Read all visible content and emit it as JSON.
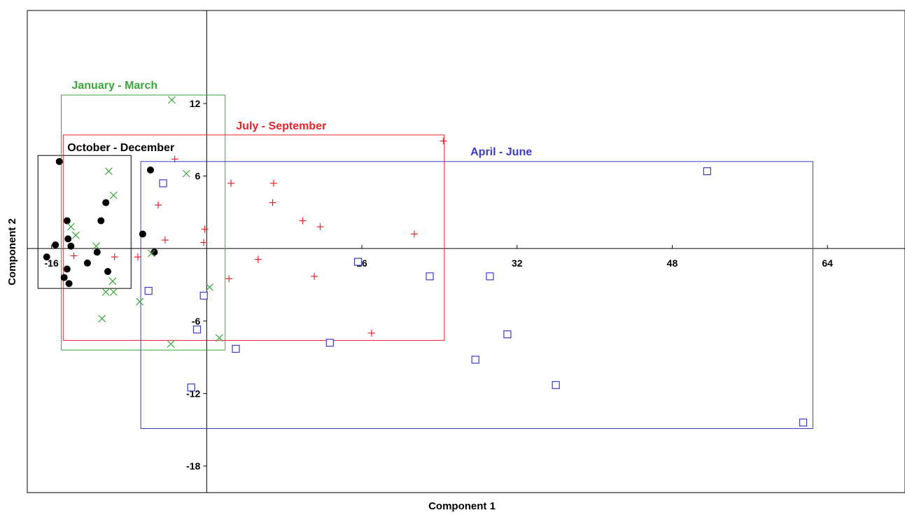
{
  "chart_data": {
    "type": "scatter",
    "xlabel": "Component 1",
    "ylabel": "Component 2",
    "xlim": [
      -18.5,
      72
    ],
    "ylim": [
      -20.2,
      19.7
    ],
    "x_ticks": [
      -16,
      16,
      32,
      48,
      64
    ],
    "y_ticks": [
      12,
      6,
      -6,
      -12,
      -18
    ],
    "grid": false,
    "series": [
      {
        "name": "October - December",
        "color": "#000000",
        "marker": "filled-circle",
        "box": {
          "x": [
            -17.4,
            -7.8
          ],
          "y": [
            -3.3,
            7.7
          ]
        },
        "points": [
          [
            -15.2,
            7.2
          ],
          [
            -5.8,
            6.5
          ],
          [
            -10.4,
            3.8
          ],
          [
            -14.4,
            2.3
          ],
          [
            -10.9,
            2.3
          ],
          [
            -6.6,
            1.2
          ],
          [
            -14.3,
            0.8
          ],
          [
            -15.6,
            0.3
          ],
          [
            -14.0,
            0.2
          ],
          [
            -11.3,
            -0.3
          ],
          [
            -5.4,
            -0.3
          ],
          [
            -16.5,
            -0.7
          ],
          [
            -12.3,
            -1.2
          ],
          [
            -14.4,
            -1.7
          ],
          [
            -10.2,
            -1.9
          ],
          [
            -14.7,
            -2.4
          ],
          [
            -14.2,
            -2.9
          ]
        ]
      },
      {
        "name": "January - March",
        "color": "#3aa63a",
        "marker": "x",
        "box": {
          "x": [
            -15.0,
            1.9
          ],
          "y": [
            -8.4,
            12.7
          ]
        },
        "points": [
          [
            -3.6,
            12.3
          ],
          [
            -10.1,
            6.4
          ],
          [
            -2.1,
            6.2
          ],
          [
            -9.6,
            4.4
          ],
          [
            -14.0,
            1.8
          ],
          [
            -13.5,
            1.1
          ],
          [
            -11.4,
            0.2
          ],
          [
            -5.7,
            -0.4
          ],
          [
            -10.4,
            -3.6
          ],
          [
            -9.7,
            -2.7
          ],
          [
            -9.6,
            -3.6
          ],
          [
            -6.9,
            -4.4
          ],
          [
            -10.8,
            -5.8
          ],
          [
            0.3,
            -3.2
          ],
          [
            1.3,
            -7.4
          ],
          [
            -3.7,
            -7.9
          ]
        ]
      },
      {
        "name": "July - September",
        "color": "#e5232a",
        "marker": "plus",
        "box": {
          "x": [
            -14.8,
            24.5
          ],
          "y": [
            -7.6,
            9.4
          ]
        },
        "points": [
          [
            24.4,
            8.9
          ],
          [
            -3.3,
            7.4
          ],
          [
            -5.0,
            3.6
          ],
          [
            2.5,
            5.4
          ],
          [
            6.9,
            5.4
          ],
          [
            6.8,
            3.8
          ],
          [
            9.9,
            2.3
          ],
          [
            11.7,
            1.8
          ],
          [
            21.4,
            1.2
          ],
          [
            -0.2,
            1.6
          ],
          [
            -4.3,
            0.7
          ],
          [
            -0.3,
            0.5
          ],
          [
            -9.5,
            -0.7
          ],
          [
            5.3,
            -0.9
          ],
          [
            -7.1,
            -0.7
          ],
          [
            -13.7,
            -0.6
          ],
          [
            2.3,
            -2.5
          ],
          [
            11.1,
            -2.3
          ],
          [
            17.0,
            -7.0
          ]
        ]
      },
      {
        "name": "April - June",
        "color": "#3a3ac2",
        "marker": "open-square",
        "box": {
          "x": [
            -6.8,
            62.5
          ],
          "y": [
            -14.9,
            7.2
          ]
        },
        "points": [
          [
            51.6,
            6.4
          ],
          [
            -4.5,
            5.4
          ],
          [
            15.6,
            -1.1
          ],
          [
            23.0,
            -2.3
          ],
          [
            29.2,
            -2.3
          ],
          [
            -6.0,
            -3.5
          ],
          [
            -0.3,
            -3.9
          ],
          [
            -1.0,
            -6.7
          ],
          [
            3.0,
            -8.3
          ],
          [
            12.7,
            -7.8
          ],
          [
            31.0,
            -7.1
          ],
          [
            27.7,
            -9.2
          ],
          [
            36.0,
            -11.3
          ],
          [
            -1.6,
            -11.5
          ],
          [
            61.5,
            -14.4
          ]
        ]
      }
    ]
  }
}
